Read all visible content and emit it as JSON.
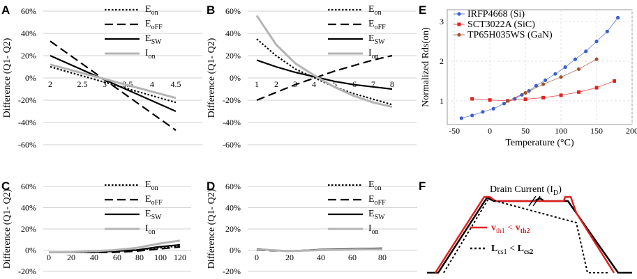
{
  "chart_data": [
    {
      "panel": "A",
      "type": "line",
      "ylabel": "Difference (Q1- Q2)",
      "ytick_labels": [
        "60%",
        "40%",
        "20%",
        "0%",
        "-20%",
        "-40%",
        "-60%"
      ],
      "xtick_labels": [
        "2",
        "2.5",
        "3",
        "3.5",
        "4",
        "4.5"
      ],
      "xlim": [
        2,
        4.5
      ],
      "ylim": [
        -60,
        60
      ],
      "series": [
        {
          "name": "Eon",
          "style": "dotted",
          "color": "#000000",
          "x": [
            2,
            4.5
          ],
          "y": [
            10,
            -22
          ]
        },
        {
          "name": "EoFF",
          "style": "dashed",
          "color": "#000000",
          "x": [
            2,
            4.5
          ],
          "y": [
            33,
            -47
          ]
        },
        {
          "name": "ESW",
          "style": "solid",
          "color": "#000000",
          "x": [
            2,
            4.5
          ],
          "y": [
            20,
            -30
          ]
        },
        {
          "name": "Ion",
          "style": "solid-gray",
          "color": "#b4b4b4",
          "x": [
            2,
            4.5
          ],
          "y": [
            12,
            -18
          ]
        }
      ]
    },
    {
      "panel": "B",
      "type": "line",
      "ylabel": "Difference (Q1- Q2)",
      "ytick_labels": [
        "60%",
        "40%",
        "20%",
        "0%",
        "-20%",
        "-40%",
        "-60%"
      ],
      "xtick_labels": [
        "1",
        "2",
        "3",
        "4",
        "5",
        "6",
        "7",
        "8"
      ],
      "xlim": [
        1,
        8
      ],
      "ylim": [
        -60,
        60
      ],
      "series": [
        {
          "name": "Eon",
          "style": "dotted",
          "color": "#000000",
          "x": [
            1,
            2,
            3,
            4,
            5,
            6,
            7,
            8
          ],
          "y": [
            35,
            20,
            8,
            0,
            -8,
            -14,
            -19,
            -24
          ]
        },
        {
          "name": "EoFF",
          "style": "dashed",
          "color": "#000000",
          "x": [
            1,
            2,
            3,
            4,
            5,
            6,
            7,
            8
          ],
          "y": [
            -20,
            -13,
            -6,
            0,
            6,
            11,
            16,
            20
          ]
        },
        {
          "name": "ESW",
          "style": "solid",
          "color": "#000000",
          "x": [
            1,
            2,
            3,
            4,
            5,
            6,
            7,
            8
          ],
          "y": [
            16,
            10,
            5,
            1,
            -3,
            -6,
            -8,
            -10
          ]
        },
        {
          "name": "Ion",
          "style": "solid-gray",
          "color": "#b4b4b4",
          "x": [
            1,
            2,
            3,
            4,
            5,
            6,
            7,
            8
          ],
          "y": [
            56,
            30,
            13,
            2,
            -8,
            -16,
            -22,
            -26
          ]
        }
      ]
    },
    {
      "panel": "C",
      "type": "line",
      "ylabel": "Difference (Q1- Q2)",
      "ytick_labels": [
        "60%",
        "40%",
        "20%",
        "0%",
        "-20%"
      ],
      "xtick_labels": [
        "0",
        "20",
        "40",
        "60",
        "80",
        "100",
        "120"
      ],
      "xlim": [
        0,
        120
      ],
      "ylim": [
        -20,
        60
      ],
      "series": [
        {
          "name": "Eon",
          "style": "dotted",
          "color": "#000000",
          "x": [
            0,
            20,
            40,
            60,
            80,
            100,
            120
          ],
          "y": [
            -2,
            -2,
            -2,
            -1,
            0,
            2,
            4
          ]
        },
        {
          "name": "EoFF",
          "style": "dashed",
          "color": "#000000",
          "x": [
            0,
            20,
            40,
            60,
            80,
            100,
            120
          ],
          "y": [
            -2,
            -2,
            -2,
            -2,
            -1,
            1,
            3
          ]
        },
        {
          "name": "ESW",
          "style": "solid",
          "color": "#000000",
          "x": [
            0,
            20,
            40,
            60,
            80,
            100,
            120
          ],
          "y": [
            -2,
            -2,
            -2,
            -1,
            0,
            3,
            5
          ]
        },
        {
          "name": "Ion",
          "style": "solid-gray",
          "color": "#b4b4b4",
          "x": [
            0,
            20,
            40,
            60,
            80,
            100,
            120
          ],
          "y": [
            -2,
            -2,
            -1,
            0,
            2,
            6,
            9
          ]
        }
      ]
    },
    {
      "panel": "D",
      "type": "line",
      "ylabel": "Difference (Q1- Q2)",
      "ytick_labels": [
        "60%",
        "40%",
        "20%",
        "0%",
        "-20%"
      ],
      "xtick_labels": [
        "0",
        "20",
        "40",
        "60",
        "80"
      ],
      "xlim": [
        0,
        80
      ],
      "ylim": [
        -20,
        60
      ],
      "series": [
        {
          "name": "Eon",
          "style": "dotted",
          "color": "#000000",
          "x": [
            0,
            10,
            20,
            40,
            60,
            80
          ],
          "y": [
            1,
            0,
            -1,
            0,
            1,
            1.5
          ]
        },
        {
          "name": "EoFF",
          "style": "dashed",
          "color": "#000000",
          "x": [
            0,
            10,
            20,
            40,
            60,
            80
          ],
          "y": [
            0,
            -0.5,
            -1,
            0,
            1,
            1.5
          ]
        },
        {
          "name": "ESW",
          "style": "solid",
          "color": "#000000",
          "x": [
            0,
            10,
            20,
            40,
            60,
            80
          ],
          "y": [
            1,
            0,
            -1,
            0.5,
            1.2,
            1.8
          ]
        },
        {
          "name": "Ion",
          "style": "solid-gray",
          "color": "#b4b4b4",
          "x": [
            0,
            10,
            20,
            40,
            60,
            80
          ],
          "y": [
            0.5,
            0,
            -1,
            0,
            0.5,
            1
          ]
        }
      ]
    },
    {
      "panel": "E",
      "type": "line",
      "xlabel": "Temperature (°C)",
      "ylabel": "Normalized Rds(on)",
      "xtick_labels": [
        "-50",
        "0",
        "50",
        "100",
        "150",
        "200"
      ],
      "ytick_labels": [
        "1",
        "2",
        "3"
      ],
      "xlim": [
        -60,
        200
      ],
      "ylim": [
        0.4,
        3.3
      ],
      "series": [
        {
          "name": "IRFP4668 (Si)",
          "color": "#3a5fcd",
          "marker": "circle",
          "x": [
            -40,
            -25,
            -10,
            5,
            20,
            35,
            45,
            55,
            65,
            78,
            92,
            106,
            120,
            135,
            150,
            165,
            180
          ],
          "y": [
            0.56,
            0.63,
            0.72,
            0.8,
            0.93,
            1.05,
            1.15,
            1.25,
            1.38,
            1.52,
            1.68,
            1.85,
            2.05,
            2.25,
            2.5,
            2.75,
            3.1
          ]
        },
        {
          "name": "SCT3022A (SiC)",
          "color": "#e02020",
          "marker": "square",
          "x": [
            -25,
            0,
            25,
            50,
            75,
            100,
            125,
            150,
            175
          ],
          "y": [
            1.05,
            1.02,
            1.0,
            1.04,
            1.08,
            1.14,
            1.22,
            1.33,
            1.5
          ]
        },
        {
          "name": "TP65H035WS (GaN)",
          "color": "#a0522d",
          "marker": "circle",
          "x": [
            25,
            50,
            75,
            100,
            125,
            150
          ],
          "y": [
            1.0,
            1.2,
            1.42,
            1.6,
            1.8,
            2.05
          ]
        }
      ]
    },
    {
      "panel": "F",
      "type": "diagram",
      "title": "Drain Current (I",
      "title_sub": "D",
      "legend": [
        {
          "label": "v",
          "sub1": "th1",
          "mid": " < ",
          "label2": "v",
          "sub2": "th2",
          "style": "solid",
          "color": "#e02020"
        },
        {
          "label": "L",
          "sub1": "cs1",
          "mid": " < ",
          "label2": "L",
          "sub2": "cs2",
          "style": "dotted",
          "color": "#000000"
        }
      ]
    }
  ],
  "legend_line_labels": {
    "eon": {
      "main": "E",
      "sub": "on"
    },
    "eoff": {
      "main": "E",
      "sub": "oFF"
    },
    "esw": {
      "main": "E",
      "sub": "SW"
    },
    "ion": {
      "main": "I",
      "sub": "on"
    }
  },
  "panel_letters": [
    "A",
    "B",
    "C",
    "D",
    "E",
    "F"
  ]
}
